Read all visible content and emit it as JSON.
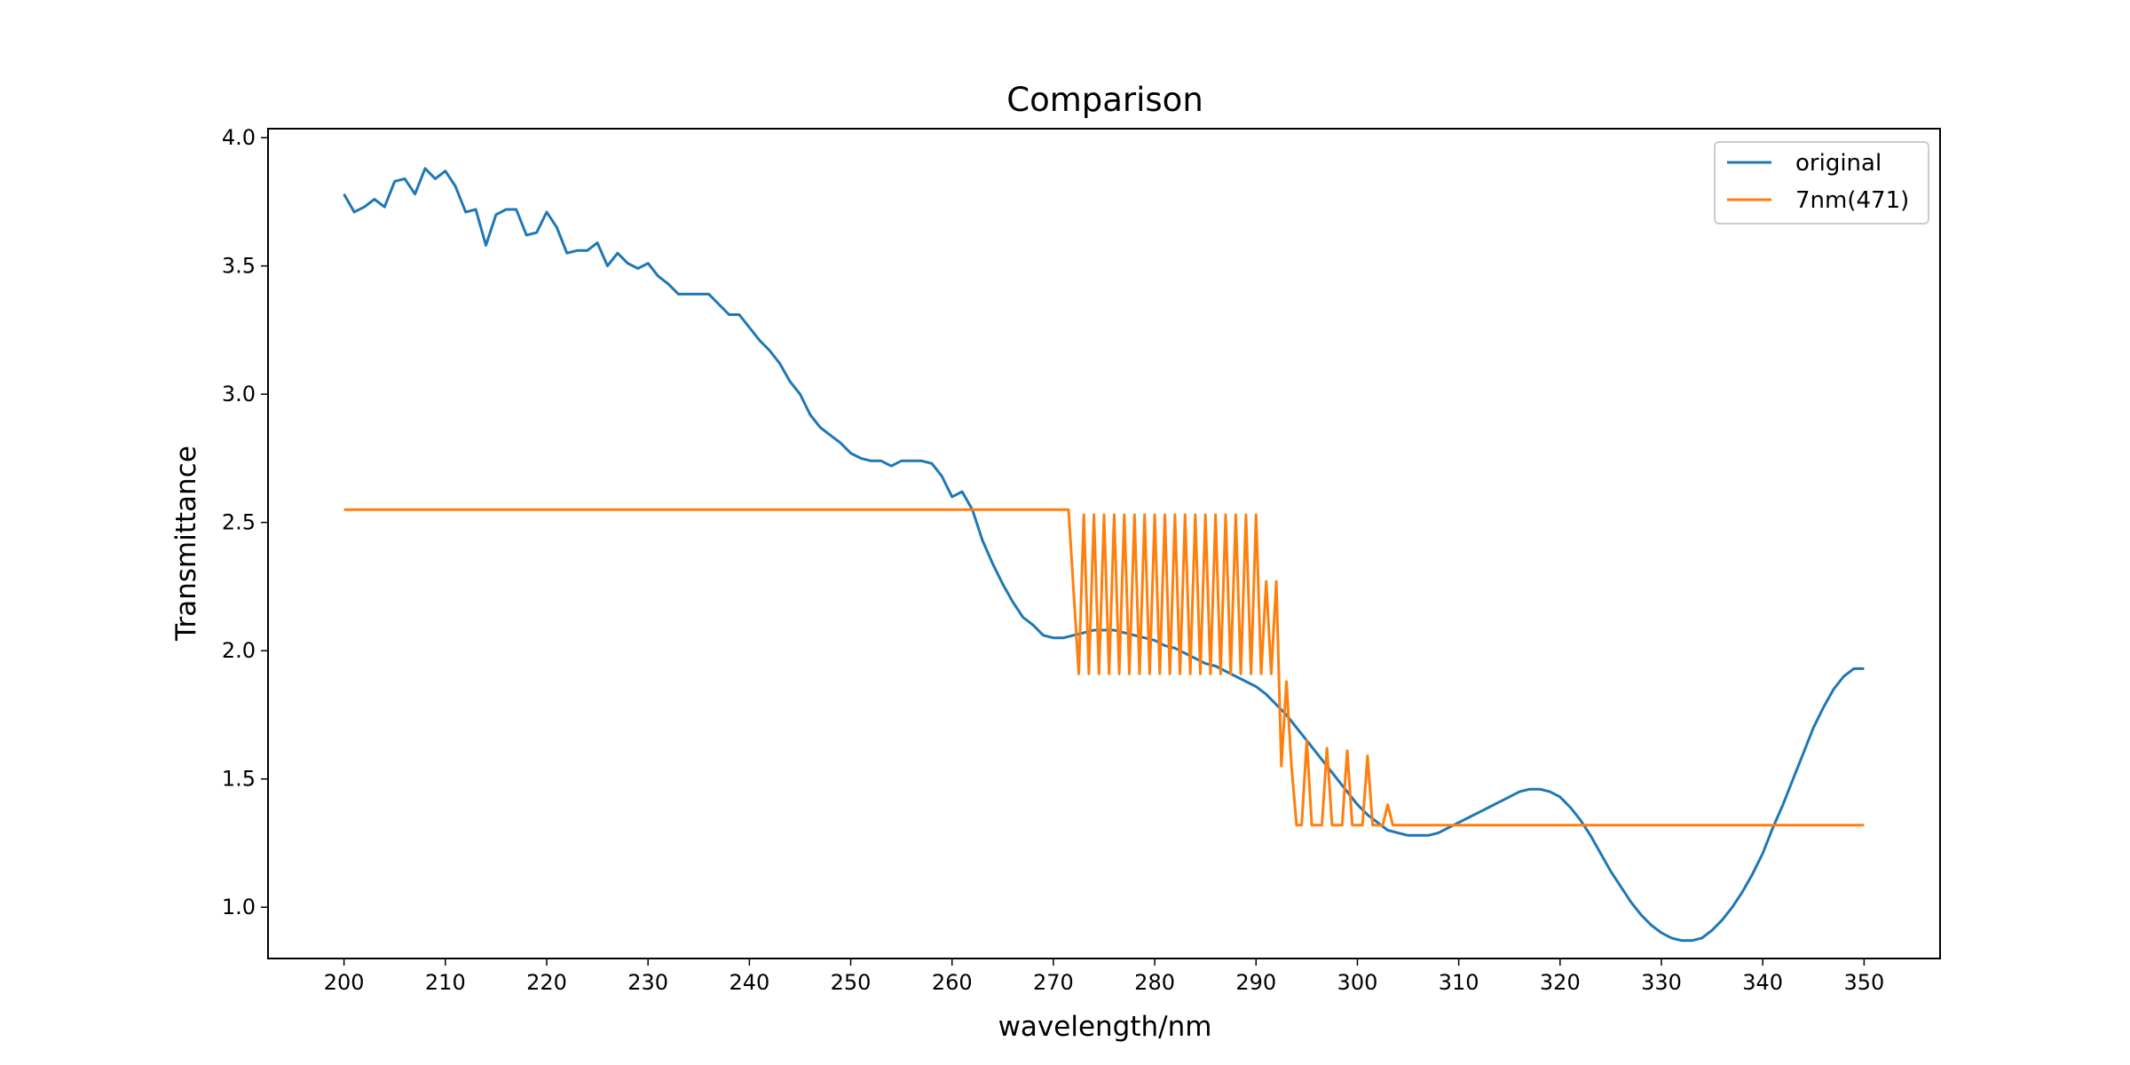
{
  "chart_data": {
    "type": "line",
    "title": "Comparison",
    "xlabel": "wavelength/nm",
    "ylabel": "Transmittance",
    "xlim": [
      192.5,
      357.5
    ],
    "ylim": [
      0.8,
      4.035
    ],
    "xticks": [
      200,
      210,
      220,
      230,
      240,
      250,
      260,
      270,
      280,
      290,
      300,
      310,
      320,
      330,
      340,
      350
    ],
    "yticks": [
      1.0,
      1.5,
      2.0,
      2.5,
      3.0,
      3.5,
      4.0
    ],
    "ytick_labels": [
      "1.0",
      "1.5",
      "2.0",
      "2.5",
      "3.0",
      "3.5",
      "4.0"
    ],
    "grid": false,
    "legend_position": "top-right",
    "series": [
      {
        "name": "original",
        "color": "#1f77b4",
        "x": [
          200,
          201,
          202,
          203,
          204,
          205,
          206,
          207,
          208,
          209,
          210,
          211,
          212,
          213,
          214,
          215,
          216,
          217,
          218,
          219,
          220,
          221,
          222,
          223,
          224,
          225,
          226,
          227,
          228,
          229,
          230,
          231,
          232,
          233,
          234,
          235,
          236,
          237,
          238,
          239,
          240,
          241,
          242,
          243,
          244,
          245,
          246,
          247,
          248,
          249,
          250,
          251,
          252,
          253,
          254,
          255,
          256,
          257,
          258,
          259,
          260,
          261,
          262,
          263,
          264,
          265,
          266,
          267,
          268,
          269,
          270,
          271,
          272,
          273,
          274,
          275,
          276,
          277,
          278,
          279,
          280,
          281,
          282,
          283,
          284,
          285,
          286,
          287,
          288,
          289,
          290,
          291,
          292,
          293,
          294,
          295,
          296,
          297,
          298,
          299,
          300,
          301,
          302,
          303,
          304,
          305,
          306,
          307,
          308,
          309,
          310,
          311,
          312,
          313,
          314,
          315,
          316,
          317,
          318,
          319,
          320,
          321,
          322,
          323,
          324,
          325,
          326,
          327,
          328,
          329,
          330,
          331,
          332,
          333,
          334,
          335,
          336,
          337,
          338,
          339,
          340,
          341,
          342,
          343,
          344,
          345,
          346,
          347,
          348,
          349,
          350
        ],
        "y": [
          3.78,
          3.71,
          3.73,
          3.76,
          3.73,
          3.83,
          3.84,
          3.78,
          3.88,
          3.84,
          3.87,
          3.81,
          3.71,
          3.72,
          3.58,
          3.7,
          3.72,
          3.72,
          3.62,
          3.63,
          3.71,
          3.65,
          3.55,
          3.56,
          3.56,
          3.59,
          3.5,
          3.55,
          3.51,
          3.49,
          3.51,
          3.46,
          3.43,
          3.39,
          3.39,
          3.39,
          3.39,
          3.35,
          3.31,
          3.31,
          3.26,
          3.21,
          3.17,
          3.12,
          3.05,
          3.0,
          2.92,
          2.87,
          2.84,
          2.81,
          2.77,
          2.75,
          2.74,
          2.74,
          2.72,
          2.74,
          2.74,
          2.74,
          2.73,
          2.68,
          2.6,
          2.62,
          2.55,
          2.43,
          2.34,
          2.26,
          2.19,
          2.13,
          2.1,
          2.06,
          2.05,
          2.05,
          2.06,
          2.07,
          2.08,
          2.08,
          2.08,
          2.07,
          2.06,
          2.05,
          2.04,
          2.02,
          2.01,
          1.99,
          1.97,
          1.95,
          1.94,
          1.92,
          1.9,
          1.88,
          1.86,
          1.83,
          1.79,
          1.75,
          1.7,
          1.65,
          1.6,
          1.55,
          1.5,
          1.45,
          1.4,
          1.36,
          1.33,
          1.3,
          1.29,
          1.28,
          1.28,
          1.28,
          1.29,
          1.31,
          1.33,
          1.35,
          1.37,
          1.39,
          1.41,
          1.43,
          1.45,
          1.46,
          1.46,
          1.45,
          1.43,
          1.39,
          1.34,
          1.28,
          1.21,
          1.14,
          1.08,
          1.02,
          0.97,
          0.93,
          0.9,
          0.88,
          0.87,
          0.87,
          0.88,
          0.91,
          0.95,
          1.0,
          1.06,
          1.13,
          1.21,
          1.31,
          1.4,
          1.5,
          1.6,
          1.7,
          1.78,
          1.85,
          1.9,
          1.93,
          1.93
        ]
      },
      {
        "name": "7nm(471)",
        "color": "#ff7f0e",
        "x": [
          200,
          271,
          271.5,
          272.5,
          273,
          273.5,
          274,
          274.5,
          275,
          275.5,
          276,
          276.5,
          277,
          277.5,
          278,
          278.5,
          279,
          279.5,
          280,
          280.5,
          281,
          281.5,
          282,
          282.5,
          283,
          283.5,
          284,
          284.5,
          285,
          285.5,
          286,
          286.5,
          287,
          287.5,
          288,
          288.5,
          289,
          289.5,
          290,
          290.5,
          291,
          291.5,
          292,
          292.5,
          293,
          293.5,
          294,
          294.5,
          295,
          295.5,
          296,
          296.5,
          297,
          297.5,
          298,
          298.5,
          299,
          299.5,
          300,
          300.5,
          301,
          301.5,
          302,
          302.5,
          303,
          303.5,
          304,
          304.5,
          305,
          350
        ],
        "y": [
          2.55,
          2.55,
          2.55,
          1.91,
          2.53,
          1.91,
          2.53,
          1.91,
          2.53,
          1.91,
          2.53,
          1.91,
          2.53,
          1.91,
          2.53,
          1.91,
          2.53,
          1.91,
          2.53,
          1.91,
          2.53,
          1.91,
          2.53,
          1.91,
          2.53,
          1.91,
          2.53,
          1.91,
          2.53,
          1.91,
          2.53,
          1.91,
          2.53,
          1.91,
          2.53,
          1.91,
          2.53,
          1.91,
          2.53,
          1.91,
          2.27,
          1.91,
          2.27,
          1.55,
          1.88,
          1.55,
          1.32,
          1.32,
          1.65,
          1.32,
          1.32,
          1.32,
          1.62,
          1.32,
          1.32,
          1.32,
          1.61,
          1.32,
          1.32,
          1.32,
          1.59,
          1.32,
          1.32,
          1.32,
          1.4,
          1.32,
          1.32,
          1.32,
          1.32,
          1.32
        ]
      }
    ]
  }
}
